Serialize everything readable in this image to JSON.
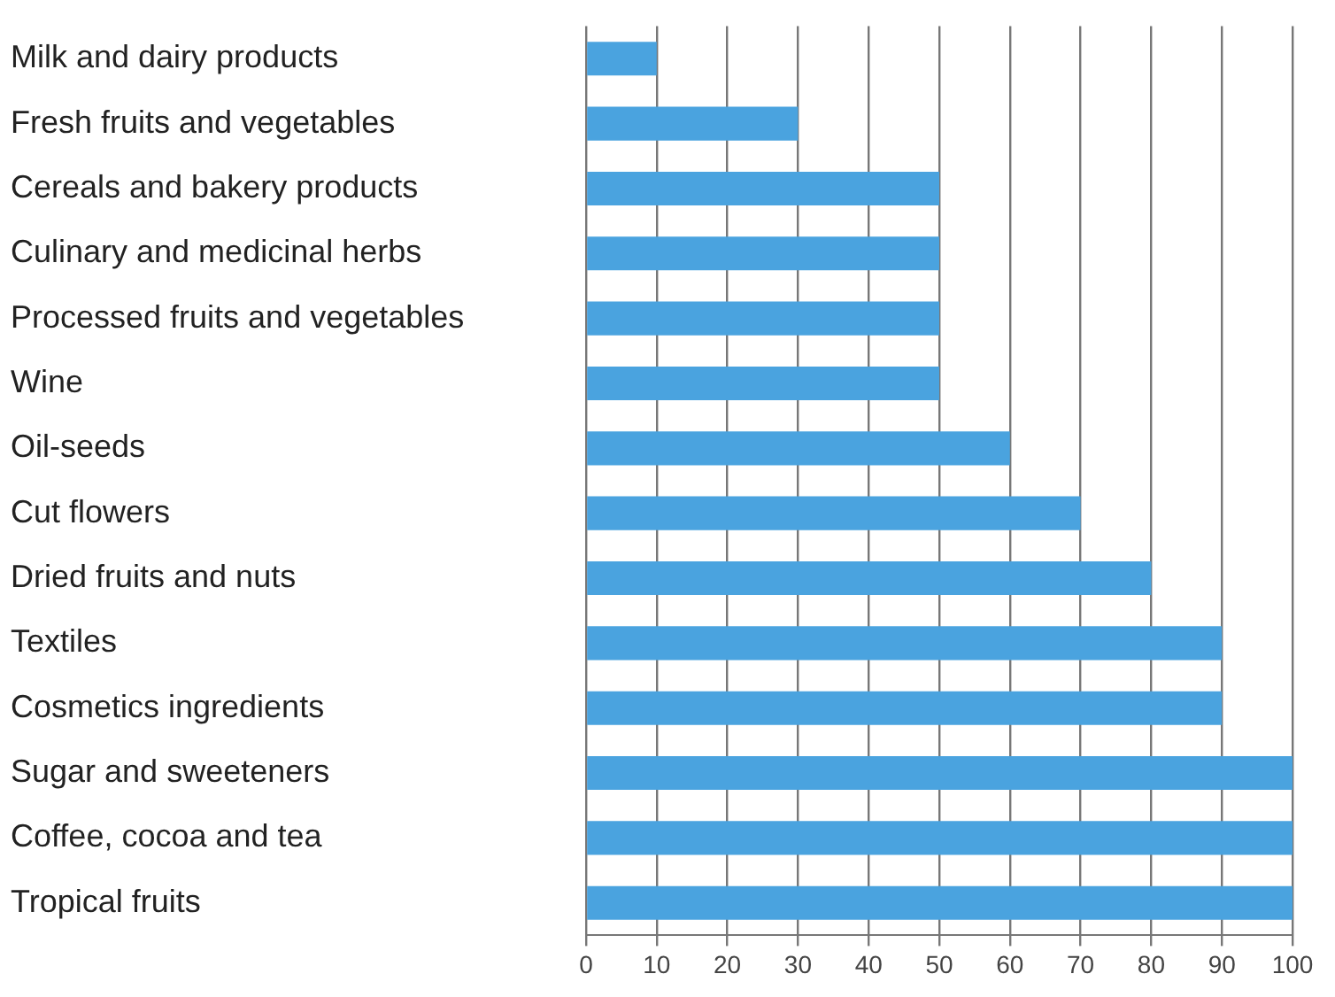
{
  "chart_data": {
    "type": "bar",
    "orientation": "horizontal",
    "categories": [
      "Milk and dairy products",
      "Fresh fruits and vegetables",
      "Cereals and bakery products",
      "Culinary and medicinal herbs",
      "Processed fruits and vegetables",
      "Wine",
      "Oil-seeds",
      "Cut flowers",
      "Dried fruits and nuts",
      "Textiles",
      "Cosmetics ingredients",
      "Sugar and sweeteners",
      "Coffee, cocoa and tea",
      "Tropical fruits"
    ],
    "values": [
      10,
      30,
      50,
      50,
      50,
      50,
      60,
      70,
      80,
      90,
      90,
      100,
      100,
      100
    ],
    "color": "#4aa3df",
    "xlim": [
      0,
      100
    ],
    "xticks": [
      0,
      10,
      20,
      30,
      40,
      50,
      60,
      70,
      80,
      90,
      100
    ],
    "grid": "x",
    "legend": false
  }
}
